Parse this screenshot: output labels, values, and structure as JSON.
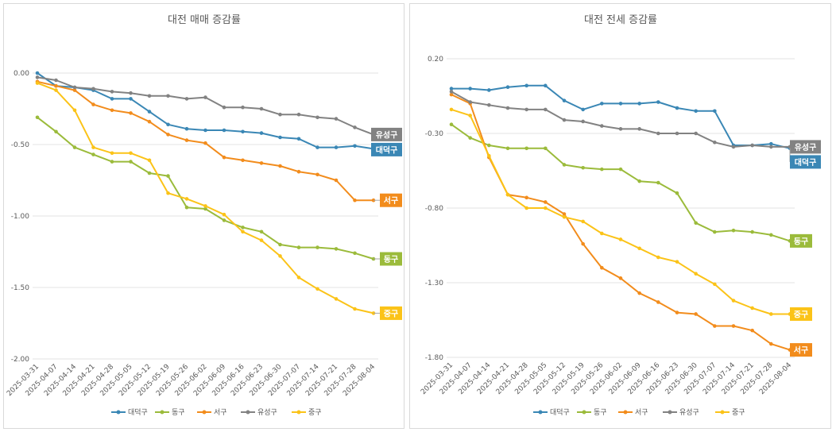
{
  "chart_data": [
    {
      "type": "line",
      "title": "대전 매매 증감률",
      "xlabel": "",
      "ylabel": "",
      "ylim": [
        -2.0,
        0.0
      ],
      "yticks": [
        "0.00",
        "-0.50",
        "-1.00",
        "-1.50",
        "-2.00"
      ],
      "ytick_values": [
        0,
        -0.5,
        -1.0,
        -1.5,
        -2.0
      ],
      "grid": true,
      "legend_position": "bottom",
      "x": [
        "2025-03-31",
        "2025-04-07",
        "2025-04-14",
        "2025-04-21",
        "2025-04-28",
        "2025-05-05",
        "2025-05-12",
        "2025-05-19",
        "2025-05-26",
        "2025-06-02",
        "2025-06-09",
        "2025-06-16",
        "2025-06-23",
        "2025-06-30",
        "2025-07-07",
        "2025-07-14",
        "2025-07-21",
        "2025-07-28",
        "2025-08-04"
      ],
      "series": [
        {
          "name": "대덕구",
          "color": "#3a87b5",
          "label": "대덕구",
          "values": [
            0.0,
            -0.09,
            -0.1,
            -0.12,
            -0.18,
            -0.18,
            -0.27,
            -0.36,
            -0.39,
            -0.4,
            -0.4,
            -0.41,
            -0.42,
            -0.45,
            -0.46,
            -0.52,
            -0.52,
            -0.51,
            -0.53
          ]
        },
        {
          "name": "동구",
          "color": "#9bbb3b",
          "label": "동구",
          "values": [
            -0.31,
            -0.41,
            -0.52,
            -0.57,
            -0.62,
            -0.62,
            -0.7,
            -0.72,
            -0.94,
            -0.95,
            -1.03,
            -1.08,
            -1.11,
            -1.2,
            -1.22,
            -1.22,
            -1.23,
            -1.26,
            -1.3
          ]
        },
        {
          "name": "서구",
          "color": "#f28c1c",
          "label": "서구",
          "values": [
            -0.06,
            -0.09,
            -0.12,
            -0.22,
            -0.26,
            -0.28,
            -0.34,
            -0.43,
            -0.47,
            -0.49,
            -0.59,
            -0.61,
            -0.63,
            -0.65,
            -0.69,
            -0.71,
            -0.75,
            -0.89,
            -0.89
          ]
        },
        {
          "name": "유성구",
          "color": "#828282",
          "label": "유성구",
          "values": [
            -0.03,
            -0.05,
            -0.1,
            -0.11,
            -0.13,
            -0.14,
            -0.16,
            -0.16,
            -0.18,
            -0.17,
            -0.24,
            -0.24,
            -0.25,
            -0.29,
            -0.29,
            -0.31,
            -0.32,
            -0.38,
            -0.43
          ]
        },
        {
          "name": "중구",
          "color": "#fbc318",
          "label": "중구",
          "values": [
            -0.07,
            -0.12,
            -0.26,
            -0.52,
            -0.56,
            -0.56,
            -0.61,
            -0.84,
            -0.88,
            -0.93,
            -0.99,
            -1.11,
            -1.17,
            -1.28,
            -1.43,
            -1.51,
            -1.58,
            -1.65,
            -1.68
          ]
        }
      ]
    },
    {
      "type": "line",
      "title": "대전 전세 증감률",
      "xlabel": "",
      "ylabel": "",
      "ylim": [
        -1.8,
        0.2
      ],
      "yticks": [
        "0.20",
        "-0.30",
        "-0.80",
        "-1.30",
        "-1.80"
      ],
      "ytick_values": [
        0.2,
        -0.3,
        -0.8,
        -1.3,
        -1.8
      ],
      "grid": true,
      "legend_position": "bottom",
      "x": [
        "2025-03-31",
        "2025-04-07",
        "2025-04-14",
        "2025-04-21",
        "2025-04-28",
        "2025-05-05",
        "2025-05-12",
        "2025-05-19",
        "2025-05-26",
        "2025-06-02",
        "2025-06-09",
        "2025-06-16",
        "2025-06-23",
        "2025-06-30",
        "2025-07-07",
        "2025-07-14",
        "2025-07-21",
        "2025-07-28",
        "2025-08-04"
      ],
      "series": [
        {
          "name": "대덕구",
          "color": "#3a87b5",
          "label": "대덕구",
          "values": [
            0.0,
            0.0,
            -0.01,
            0.01,
            0.02,
            0.02,
            -0.08,
            -0.14,
            -0.1,
            -0.1,
            -0.1,
            -0.09,
            -0.13,
            -0.15,
            -0.15,
            -0.38,
            -0.38,
            -0.37,
            -0.4
          ]
        },
        {
          "name": "동구",
          "color": "#9bbb3b",
          "label": "동구",
          "values": [
            -0.24,
            -0.33,
            -0.38,
            -0.4,
            -0.4,
            -0.4,
            -0.51,
            -0.53,
            -0.54,
            -0.54,
            -0.62,
            -0.63,
            -0.7,
            -0.9,
            -0.96,
            -0.95,
            -0.96,
            -0.98,
            -1.02
          ]
        },
        {
          "name": "서구",
          "color": "#f28c1c",
          "label": "서구",
          "values": [
            -0.04,
            -0.1,
            -0.46,
            -0.71,
            -0.73,
            -0.76,
            -0.84,
            -1.04,
            -1.2,
            -1.27,
            -1.37,
            -1.43,
            -1.5,
            -1.51,
            -1.59,
            -1.59,
            -1.62,
            -1.71,
            -1.75
          ]
        },
        {
          "name": "유성구",
          "color": "#828282",
          "label": "유성구",
          "values": [
            -0.02,
            -0.09,
            -0.11,
            -0.13,
            -0.14,
            -0.14,
            -0.21,
            -0.22,
            -0.25,
            -0.27,
            -0.27,
            -0.3,
            -0.3,
            -0.3,
            -0.36,
            -0.39,
            -0.38,
            -0.39,
            -0.39
          ]
        },
        {
          "name": "중구",
          "color": "#fbc318",
          "label": "중구",
          "values": [
            -0.14,
            -0.18,
            -0.45,
            -0.71,
            -0.8,
            -0.8,
            -0.86,
            -0.89,
            -0.97,
            -1.01,
            -1.07,
            -1.13,
            -1.16,
            -1.24,
            -1.31,
            -1.42,
            -1.47,
            -1.51,
            -1.51
          ]
        }
      ]
    }
  ]
}
